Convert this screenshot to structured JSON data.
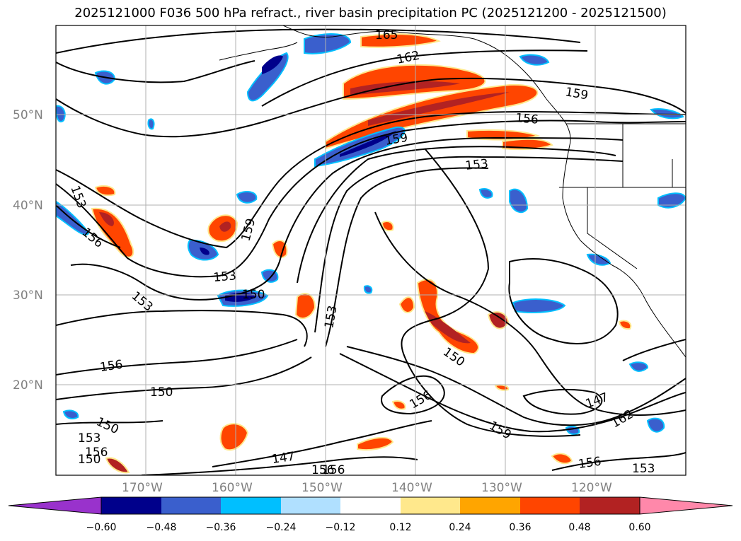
{
  "title": "2025121000 F036 500 hPa refract., river basin precipitation PC (2025121200 - 2025121500)",
  "lat_labels": [
    "50°N",
    "40°N",
    "30°N",
    "20°N"
  ],
  "lon_labels": [
    "170°W",
    "160°W",
    "150°W",
    "140°W",
    "130°W",
    "120°W"
  ],
  "contour_labels": [
    "165",
    "162",
    "159",
    "156",
    "159",
    "153",
    "153",
    "156",
    "159",
    "153",
    "150",
    "153",
    "153",
    "156",
    "150",
    "150",
    "153",
    "156",
    "159",
    "156",
    "147",
    "150",
    "147",
    "162",
    "156",
    "153",
    "150",
    "153",
    "156",
    "162",
    "147",
    "156",
    "156"
  ],
  "colorbar": {
    "ticks": [
      "−0.60",
      "−0.48",
      "−0.36",
      "−0.24",
      "−0.12",
      "0.12",
      "0.24",
      "0.36",
      "0.48",
      "0.60"
    ],
    "colors": [
      "#9932cc",
      "#00008b",
      "#3a5fcd",
      "#00bfff",
      "#b0e0ff",
      "#ffffff",
      "#ffe88c",
      "#ffa500",
      "#ff4500",
      "#b22222",
      "#ff88aa"
    ]
  },
  "colors": {
    "contour": "#000000",
    "grid": "#b0b0b0",
    "coast": "#000000"
  }
}
